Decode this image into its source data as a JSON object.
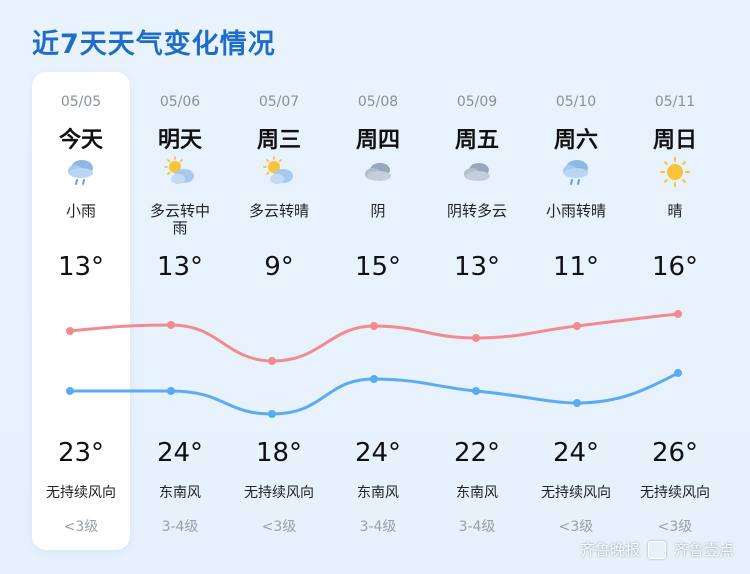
{
  "title": "近7天天气变化情况",
  "colors": {
    "high_line": "#f28b8f",
    "low_line": "#5aabf2",
    "title": "#1f6cc9"
  },
  "days": [
    {
      "date": "05/05",
      "day": "今天",
      "icon": "rain-cloud-icon",
      "desc": "小雨",
      "high": "13°",
      "low": "23°",
      "wind": "无持续风向",
      "level": "<3级"
    },
    {
      "date": "05/06",
      "day": "明天",
      "icon": "sun-cloud-icon",
      "desc": "多云转中雨",
      "high": "13°",
      "low": "24°",
      "wind": "东南风",
      "level": "3-4级"
    },
    {
      "date": "05/07",
      "day": "周三",
      "icon": "sun-cloud-icon",
      "desc": "多云转晴",
      "high": "9°",
      "low": "18°",
      "wind": "无持续风向",
      "level": "<3级"
    },
    {
      "date": "05/08",
      "day": "周四",
      "icon": "cloud-icon",
      "desc": "阴",
      "high": "15°",
      "low": "24°",
      "wind": "东南风",
      "level": "3-4级"
    },
    {
      "date": "05/09",
      "day": "周五",
      "icon": "cloud-icon",
      "desc": "阴转多云",
      "high": "13°",
      "low": "22°",
      "wind": "东南风",
      "level": "3-4级"
    },
    {
      "date": "05/10",
      "day": "周六",
      "icon": "rain-cloud-icon",
      "desc": "小雨转晴",
      "high": "11°",
      "low": "24°",
      "wind": "无持续风向",
      "level": "<3级"
    },
    {
      "date": "05/11",
      "day": "周日",
      "icon": "sun-icon",
      "desc": "晴",
      "high": "16°",
      "low": "26°",
      "wind": "无持续风向",
      "level": "<3级"
    }
  ],
  "watermark": {
    "left": "齐鲁晚报",
    "right": "齐鲁壹点"
  }
}
